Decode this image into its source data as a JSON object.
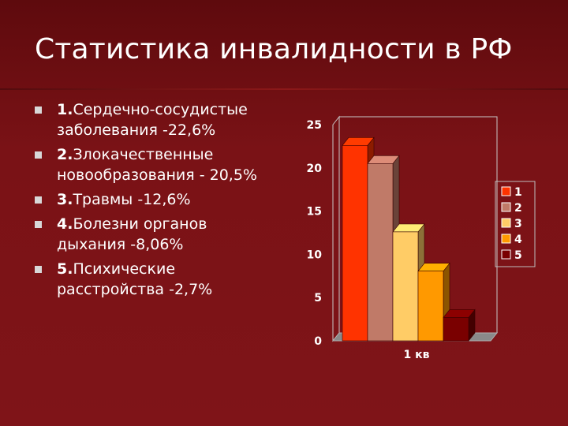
{
  "slide": {
    "title": "Статистика инвалидности в РФ",
    "bullets": [
      {
        "num": "1.",
        "text": "Сердечно-сосудистые заболевания -22,6%"
      },
      {
        "num": "2.",
        "text": "Злокачественные новообразования - 20,5%"
      },
      {
        "num": "3.",
        "text": "Травмы -12,6%"
      },
      {
        "num": "4.",
        "text": "Болезни органов дыхания -8,06%"
      },
      {
        "num": "5.",
        "text": "Психические расстройства -2,7%"
      }
    ]
  },
  "colors": {
    "background": "#7a1216",
    "series": [
      "#ff3300",
      "#c07a68",
      "#ffcc66",
      "#ff9900",
      "#7a0000"
    ]
  },
  "chart_data": {
    "type": "bar",
    "categories": [
      "1 кв"
    ],
    "series": [
      {
        "name": "1",
        "values": [
          22.6
        ]
      },
      {
        "name": "2",
        "values": [
          20.5
        ]
      },
      {
        "name": "3",
        "values": [
          12.6
        ]
      },
      {
        "name": "4",
        "values": [
          8.06
        ]
      },
      {
        "name": "5",
        "values": [
          2.7
        ]
      }
    ],
    "yticks": [
      "0",
      "5",
      "10",
      "15",
      "20",
      "25"
    ],
    "ylim": [
      0,
      25
    ],
    "grid": false,
    "legend": "right",
    "style": "3d"
  }
}
